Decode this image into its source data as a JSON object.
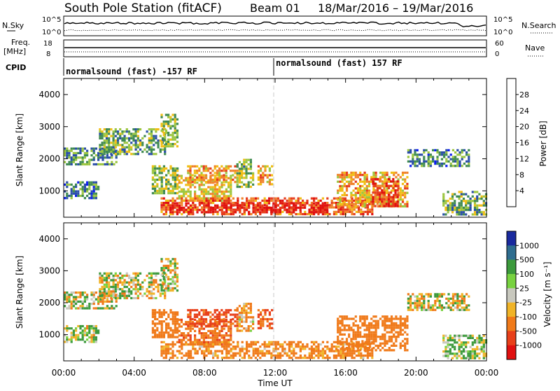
{
  "header": {
    "station": "South Pole Station (fitACF)",
    "beam": "Beam 01",
    "dates": "18/Mar/2016 – 19/Mar/2016"
  },
  "strips": {
    "nsky_label": "N.Sky",
    "nsky_ticks": [
      "10^5",
      "10^0"
    ],
    "nsearch_label": "N.Search",
    "nsearch_ticks": [
      "10^5",
      "10^0"
    ],
    "freq_label": "Freq.",
    "freq_unit": "[MHz]",
    "freq_ticks": [
      "18",
      "8"
    ],
    "nave_label": "Nave",
    "nave_ticks": [
      "60",
      "0"
    ],
    "cpid_label": "CPID",
    "cpid_left": "normalsound (fast) -157 RF",
    "cpid_right": "normalsound (fast) 157 RF"
  },
  "axes": {
    "ylabel": "Slant Range [km]",
    "xlabel": "Time UT",
    "yticks": [
      "1000",
      "2000",
      "3000",
      "4000"
    ],
    "xticks": [
      "00:00",
      "04:00",
      "08:00",
      "12:00",
      "16:00",
      "20:00",
      "00:00"
    ]
  },
  "power_scale": {
    "label": "Power [dB]",
    "ticks": [
      "4",
      "8",
      "12",
      "16",
      "20",
      "24",
      "28"
    ],
    "colors": [
      "#0a1cf0",
      "#2a4ea8",
      "#3f8a52",
      "#9cc640",
      "#f0be14",
      "#f0822a",
      "#e63c1c",
      "#e01010"
    ]
  },
  "velocity_scale": {
    "label": "Velocity [m s⁻¹]",
    "ticks": [
      "1000",
      "500",
      "100",
      "25",
      "-25",
      "-100",
      "-500",
      "-1000"
    ],
    "colors": [
      "#1a2a9e",
      "#2f6d8f",
      "#3c9a3c",
      "#78d240",
      "#c8c8be",
      "#f0b428",
      "#f07a1a",
      "#e8401a",
      "#e01010"
    ]
  },
  "chart_data": [
    {
      "type": "heatmap",
      "title": "Power",
      "xlabel": "Time UT",
      "ylabel": "Slant Range [km]",
      "xlim": [
        "00:00",
        "24:00"
      ],
      "ylim": [
        180,
        4500
      ],
      "colorbar": {
        "label": "Power [dB]",
        "range": [
          0,
          32
        ]
      },
      "echo_regions": [
        {
          "t0": 0.0,
          "t1": 3.0,
          "r0": 1850,
          "r1": 2350,
          "value": 10
        },
        {
          "t0": 2.0,
          "t1": 5.8,
          "r0": 2150,
          "r1": 2950,
          "value": 12
        },
        {
          "t0": 5.5,
          "t1": 6.5,
          "r0": 2400,
          "r1": 3400,
          "value": 14
        },
        {
          "t0": 0.0,
          "t1": 2.0,
          "r0": 800,
          "r1": 1300,
          "value": 9
        },
        {
          "t0": 5.0,
          "t1": 6.5,
          "r0": 900,
          "r1": 1800,
          "value": 14
        },
        {
          "t0": 6.5,
          "t1": 9.5,
          "r0": 700,
          "r1": 1500,
          "value": 18
        },
        {
          "t0": 7.0,
          "t1": 9.8,
          "r0": 1300,
          "r1": 1800,
          "value": 20
        },
        {
          "t0": 9.8,
          "t1": 10.8,
          "r0": 1100,
          "r1": 2000,
          "value": 13
        },
        {
          "t0": 11.0,
          "t1": 11.8,
          "r0": 1200,
          "r1": 1800,
          "value": 20
        },
        {
          "t0": 5.5,
          "t1": 17.5,
          "r0": 300,
          "r1": 800,
          "value": 24
        },
        {
          "t0": 6.0,
          "t1": 15.0,
          "r0": 350,
          "r1": 650,
          "value": 30
        },
        {
          "t0": 15.5,
          "t1": 19.5,
          "r0": 500,
          "r1": 1600,
          "value": 20
        },
        {
          "t0": 17.5,
          "t1": 19.0,
          "r0": 500,
          "r1": 1400,
          "value": 27
        },
        {
          "t0": 19.5,
          "t1": 23.0,
          "r0": 1800,
          "r1": 2300,
          "value": 9
        },
        {
          "t0": 21.5,
          "t1": 24.0,
          "r0": 250,
          "r1": 1000,
          "value": 12
        }
      ]
    },
    {
      "type": "heatmap",
      "title": "Velocity",
      "xlabel": "Time UT",
      "ylabel": "Slant Range [km]",
      "xlim": [
        "00:00",
        "24:00"
      ],
      "ylim": [
        180,
        4500
      ],
      "colorbar": {
        "label": "Velocity [m s⁻¹]",
        "range": [
          -1000,
          1000
        ]
      },
      "echo_regions": [
        {
          "t0": 0.0,
          "t1": 3.0,
          "r0": 1850,
          "r1": 2350,
          "value": 0
        },
        {
          "t0": 2.0,
          "t1": 5.8,
          "r0": 2150,
          "r1": 2950,
          "value": 0
        },
        {
          "t0": 5.5,
          "t1": 6.5,
          "r0": 2400,
          "r1": 3400,
          "value": 0
        },
        {
          "t0": 0.0,
          "t1": 2.0,
          "r0": 800,
          "r1": 1300,
          "value": 60
        },
        {
          "t0": 5.0,
          "t1": 6.5,
          "r0": 900,
          "r1": 1800,
          "value": -300
        },
        {
          "t0": 6.5,
          "t1": 9.5,
          "r0": 700,
          "r1": 1500,
          "value": -400
        },
        {
          "t0": 7.0,
          "t1": 9.8,
          "r0": 1300,
          "r1": 1800,
          "value": -600
        },
        {
          "t0": 9.8,
          "t1": 10.8,
          "r0": 1100,
          "r1": 2000,
          "value": -150
        },
        {
          "t0": 11.0,
          "t1": 11.8,
          "r0": 1200,
          "r1": 1800,
          "value": -500
        },
        {
          "t0": 5.5,
          "t1": 17.5,
          "r0": 300,
          "r1": 800,
          "value": -200
        },
        {
          "t0": 15.5,
          "t1": 19.5,
          "r0": 500,
          "r1": 1600,
          "value": -300
        },
        {
          "t0": 19.5,
          "t1": 23.0,
          "r0": 1800,
          "r1": 2300,
          "value": 0
        },
        {
          "t0": 21.5,
          "t1": 24.0,
          "r0": 250,
          "r1": 1000,
          "value": 80
        }
      ]
    }
  ]
}
